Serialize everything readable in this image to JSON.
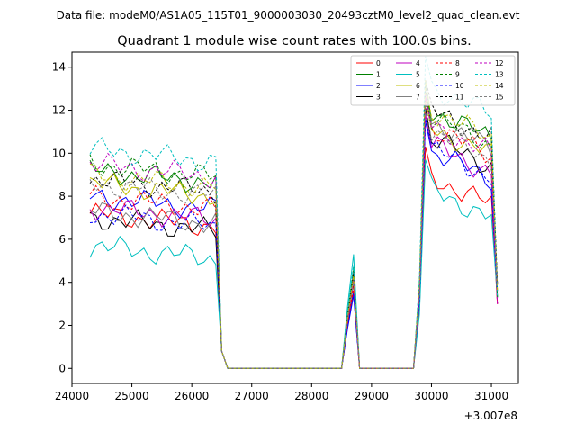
{
  "header": {
    "file_label": "Data file: modeM0/AS1A05_115T01_9000003030_20493cztM0_level2_quad_clean.evt"
  },
  "chart_data": {
    "type": "line",
    "title": "Quadrant 1 module wise count rates with 100.0s bins.",
    "xlabel": "",
    "ylabel": "",
    "x_offset_label": "+3.007e8",
    "xlim": [
      24000,
      31450
    ],
    "ylim": [
      -0.7,
      14.7
    ],
    "xticks": [
      24000,
      25000,
      26000,
      27000,
      28000,
      29000,
      30000,
      31000
    ],
    "yticks": [
      0,
      2,
      4,
      6,
      8,
      10,
      12,
      14
    ],
    "legend_position": "top-right",
    "series": [
      {
        "name": "0",
        "color": "#ff0000",
        "dash": "solid",
        "base1": 7.2,
        "base2": 7.8,
        "spike": 3.6
      },
      {
        "name": "1",
        "color": "#008000",
        "dash": "solid",
        "base1": 9.2,
        "base2": 10.9,
        "spike": 4.6
      },
      {
        "name": "2",
        "color": "#0000ff",
        "dash": "solid",
        "base1": 8.0,
        "base2": 9.0,
        "spike": 3.4
      },
      {
        "name": "3",
        "color": "#000000",
        "dash": "solid",
        "base1": 7.0,
        "base2": 9.6,
        "spike": 4.0
      },
      {
        "name": "4",
        "color": "#bf00bf",
        "dash": "solid",
        "base1": 7.5,
        "base2": 9.3,
        "spike": 4.3
      },
      {
        "name": "5",
        "color": "#00bfbf",
        "dash": "solid",
        "base1": 5.7,
        "base2": 7.2,
        "spike": 5.3
      },
      {
        "name": "6",
        "color": "#bfbf00",
        "dash": "solid",
        "base1": 8.6,
        "base2": 10.1,
        "spike": 4.2
      },
      {
        "name": "7",
        "color": "#808080",
        "dash": "solid",
        "base1": 7.3,
        "base2": 10.4,
        "spike": 4.5
      },
      {
        "name": "8",
        "color": "#ff0000",
        "dash": "dashed",
        "base1": 8.0,
        "base2": 10.1,
        "spike": 3.8
      },
      {
        "name": "9",
        "color": "#008000",
        "dash": "dashed",
        "base1": 9.5,
        "base2": 10.6,
        "spike": 4.7
      },
      {
        "name": "10",
        "color": "#0000ff",
        "dash": "dashed",
        "base1": 7.2,
        "base2": 9.1,
        "spike": 3.5
      },
      {
        "name": "11",
        "color": "#000000",
        "dash": "dashed",
        "base1": 8.8,
        "base2": 10.9,
        "spike": 4.4
      },
      {
        "name": "12",
        "color": "#bf00bf",
        "dash": "dashed",
        "base1": 9.5,
        "base2": 10.2,
        "spike": 4.1
      },
      {
        "name": "13",
        "color": "#00bfbf",
        "dash": "dashed",
        "base1": 10.2,
        "base2": 12.0,
        "spike": 4.8
      },
      {
        "name": "14",
        "color": "#bfbf00",
        "dash": "dashed",
        "base1": 9.0,
        "base2": 10.9,
        "spike": 4.3
      },
      {
        "name": "15",
        "color": "#808080",
        "dash": "dashed",
        "base1": 8.6,
        "base2": 9.9,
        "spike": 4.0
      }
    ]
  }
}
